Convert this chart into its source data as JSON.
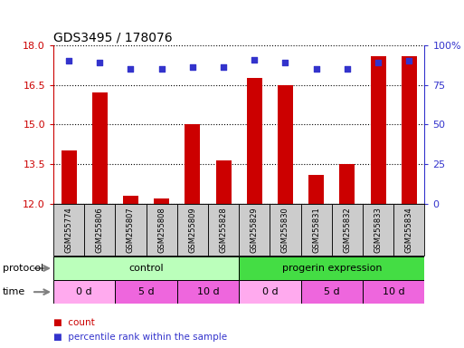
{
  "title": "GDS3495 / 178076",
  "samples": [
    "GSM255774",
    "GSM255806",
    "GSM255807",
    "GSM255808",
    "GSM255809",
    "GSM255828",
    "GSM255829",
    "GSM255830",
    "GSM255831",
    "GSM255832",
    "GSM255833",
    "GSM255834"
  ],
  "bar_values": [
    14.0,
    16.2,
    12.3,
    12.2,
    15.0,
    13.65,
    16.75,
    16.5,
    13.1,
    13.5,
    17.6,
    17.6
  ],
  "dot_values": [
    90,
    89,
    85,
    85,
    86,
    86,
    91,
    89,
    85,
    85,
    89,
    90
  ],
  "ylim_left": [
    12,
    18
  ],
  "ylim_right": [
    0,
    100
  ],
  "yticks_left": [
    12,
    13.5,
    15,
    16.5,
    18
  ],
  "yticks_right": [
    0,
    25,
    50,
    75,
    100
  ],
  "bar_color": "#cc0000",
  "dot_color": "#3333cc",
  "protocol_control": {
    "label": "control",
    "color": "#bbffbb",
    "start": 0,
    "end": 6
  },
  "protocol_progerin": {
    "label": "progerin expression",
    "color": "#44dd44",
    "start": 6,
    "end": 12
  },
  "time_groups": [
    {
      "label": "0 d",
      "color": "#ffaaee",
      "start": 0,
      "end": 2
    },
    {
      "label": "5 d",
      "color": "#ee66dd",
      "start": 2,
      "end": 4
    },
    {
      "label": "10 d",
      "color": "#ee66dd",
      "start": 4,
      "end": 6
    },
    {
      "label": "0 d",
      "color": "#ffaaee",
      "start": 6,
      "end": 8
    },
    {
      "label": "5 d",
      "color": "#ee66dd",
      "start": 8,
      "end": 10
    },
    {
      "label": "10 d",
      "color": "#ee66dd",
      "start": 10,
      "end": 12
    }
  ],
  "legend_items": [
    {
      "label": "count",
      "color": "#cc0000"
    },
    {
      "label": "percentile rank within the sample",
      "color": "#3333cc"
    }
  ],
  "sample_bg_color": "#cccccc",
  "title_fontsize": 10,
  "tick_fontsize": 8,
  "label_fontsize": 8,
  "sample_fontsize": 6,
  "row_fontsize": 8
}
